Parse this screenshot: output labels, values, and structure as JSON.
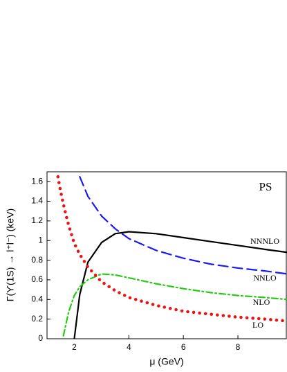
{
  "chart_data": {
    "type": "line",
    "xlabel": "μ (GeV)",
    "ylabel": "Γ(ϒ(1S) → l⁺l⁻) (keV)",
    "annotation": "PS",
    "x": [
      1.4,
      1.5,
      1.6,
      1.75,
      1.8,
      2,
      2.2,
      2.5,
      3,
      3.5,
      4,
      5,
      6,
      7,
      8,
      9,
      9.8
    ],
    "series": [
      {
        "name": "NNNLO",
        "color": "#000000",
        "style": "solid",
        "values": [
          null,
          null,
          null,
          null,
          null,
          0,
          0.45,
          0.78,
          0.98,
          1.07,
          1.09,
          1.07,
          1.03,
          0.99,
          0.95,
          0.91,
          0.88
        ]
      },
      {
        "name": "NNLO",
        "color": "#1a1aee",
        "style": "dashed",
        "values": [
          null,
          null,
          null,
          null,
          null,
          null,
          1.65,
          1.45,
          1.25,
          1.12,
          1.02,
          0.9,
          0.82,
          0.76,
          0.72,
          0.69,
          0.66
        ]
      },
      {
        "name": "NLO",
        "color": "#22cc11",
        "style": "dashdot",
        "values": [
          null,
          null,
          0.03,
          0.22,
          0.28,
          0.44,
          0.53,
          0.6,
          0.66,
          0.65,
          0.62,
          0.56,
          0.51,
          0.47,
          0.44,
          0.42,
          0.4
        ]
      },
      {
        "name": "LO",
        "color": "#ee1111",
        "style": "dotted",
        "values": [
          1.65,
          1.5,
          1.37,
          1.2,
          1.15,
          0.97,
          0.86,
          0.73,
          0.58,
          0.49,
          0.42,
          0.34,
          0.28,
          0.25,
          0.22,
          0.2,
          0.18
        ]
      }
    ],
    "xlim": [
      1,
      9.8
    ],
    "ylim": [
      0,
      1.7
    ],
    "xticks": [
      2,
      4,
      6,
      8
    ],
    "yticks": [
      0,
      0.2,
      0.4,
      0.6,
      0.8,
      1,
      1.2,
      1.4,
      1.6
    ]
  }
}
